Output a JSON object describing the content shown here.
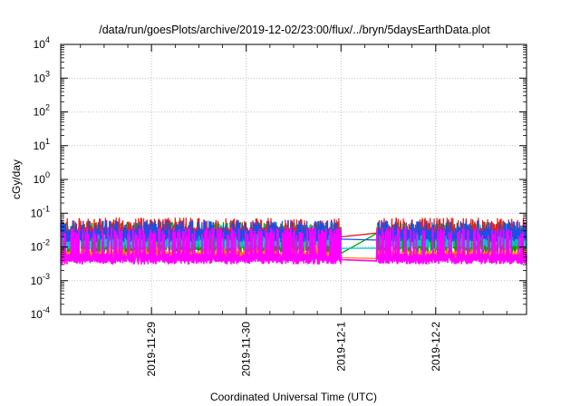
{
  "chart_data": {
    "type": "line",
    "title": "/data/run/goesPlots/archive/2019-12-02/23:00/flux/../bryn/5daysEarthData.plot",
    "xlabel": "Coordinated Universal Time (UTC)",
    "ylabel": "cGy/day",
    "y_scale": "log",
    "ylim": [
      0.0001,
      10000
    ],
    "xlim": [
      "2019-11-28T01:00",
      "2019-12-02T23:00"
    ],
    "grid": true,
    "legend": "none",
    "x_ticks": [
      {
        "date": "2019-11-29T00:00",
        "label": "2019-11-29"
      },
      {
        "date": "2019-11-30T00:00",
        "label": "2019-11-30"
      },
      {
        "date": "2019-12-01T00:00",
        "label": "2019-12-1"
      },
      {
        "date": "2019-12-02T00:00",
        "label": "2019-12-2"
      }
    ],
    "y_ticks": [
      {
        "value": 0.0001,
        "base": "10",
        "exp": "-4"
      },
      {
        "value": 0.001,
        "base": "10",
        "exp": "-3"
      },
      {
        "value": 0.01,
        "base": "10",
        "exp": "-2"
      },
      {
        "value": 0.1,
        "base": "10",
        "exp": "-1"
      },
      {
        "value": 1,
        "base": "10",
        "exp": "0"
      },
      {
        "value": 10,
        "base": "10",
        "exp": "1"
      },
      {
        "value": 100,
        "base": "10",
        "exp": "2"
      },
      {
        "value": 1000,
        "base": "10",
        "exp": "3"
      },
      {
        "value": 10000,
        "base": "10",
        "exp": "4"
      }
    ],
    "data_gap": {
      "start": "2019-12-01T00:00",
      "end": "2019-12-01T09:00"
    },
    "series": [
      {
        "color": "#e8201c",
        "base": 0.03,
        "spike": 0.06,
        "dip": 0.024,
        "gap_value": 0.02
      },
      {
        "color": "#00a000",
        "base": 0.024,
        "spike": 0.045,
        "dip": 0.008,
        "gap_value": 0.0065
      },
      {
        "color": "#00c8c8",
        "base": 0.022,
        "spike": 0.04,
        "dip": 0.01,
        "gap_value": 0.009
      },
      {
        "color": "#1a4fe6",
        "base": 0.026,
        "spike": 0.05,
        "dip": 0.016,
        "gap_value": 0.017
      },
      {
        "color": "#ff7f00",
        "base": 0.006,
        "spike": 0.022,
        "dip": 0.0045,
        "gap_value": 0.0048
      },
      {
        "color": "#ff00ff",
        "base": 0.005,
        "spike": 0.03,
        "dip": 0.0035,
        "gap_value": 0.0042
      }
    ]
  }
}
